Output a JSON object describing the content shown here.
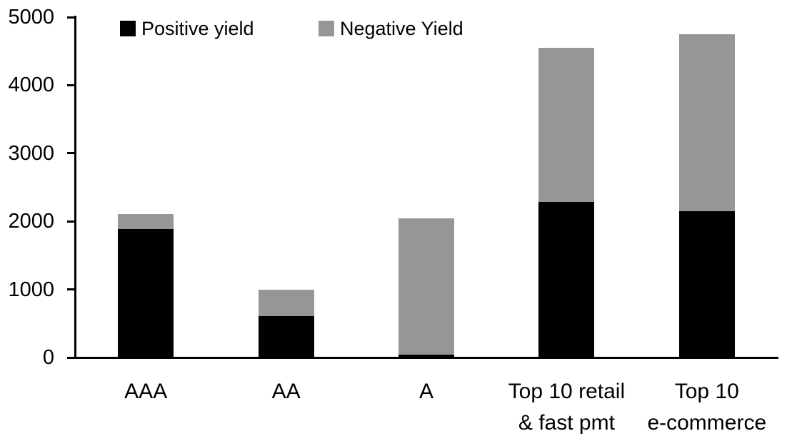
{
  "chart_data": {
    "type": "bar",
    "stacked": true,
    "title": "",
    "xlabel": "",
    "ylabel": "",
    "grid": false,
    "legend_position": "top",
    "background_color": "#ffffff",
    "axis_color": "#000000",
    "ylim": [
      0,
      5000
    ],
    "yticks": [
      0,
      1000,
      2000,
      3000,
      4000,
      5000
    ],
    "ytick_labels": [
      "0",
      "1000",
      "2000",
      "3000",
      "4000",
      "5000"
    ],
    "categories": [
      "AAA",
      "AA",
      "A",
      "Top 10 retail & fast pmt",
      "Top 10 e-commerce"
    ],
    "category_label_lines": [
      [
        "AAA"
      ],
      [
        "AA"
      ],
      [
        "A"
      ],
      [
        "Top 10 retail",
        "& fast pmt"
      ],
      [
        "Top 10",
        "e-commerce"
      ]
    ],
    "series": [
      {
        "name": "Positive yield",
        "color": "#000000",
        "values": [
          1890,
          610,
          40,
          2280,
          2150
        ]
      },
      {
        "name": "Negative Yield",
        "color": "#969696",
        "values": [
          220,
          390,
          2000,
          2270,
          2600
        ]
      }
    ],
    "stack_totals": [
      2110,
      1000,
      2040,
      4550,
      4750
    ]
  },
  "legend": {
    "items": [
      {
        "label": "Positive yield",
        "color": "#000000"
      },
      {
        "label": "Negative Yield",
        "color": "#969696"
      }
    ]
  }
}
